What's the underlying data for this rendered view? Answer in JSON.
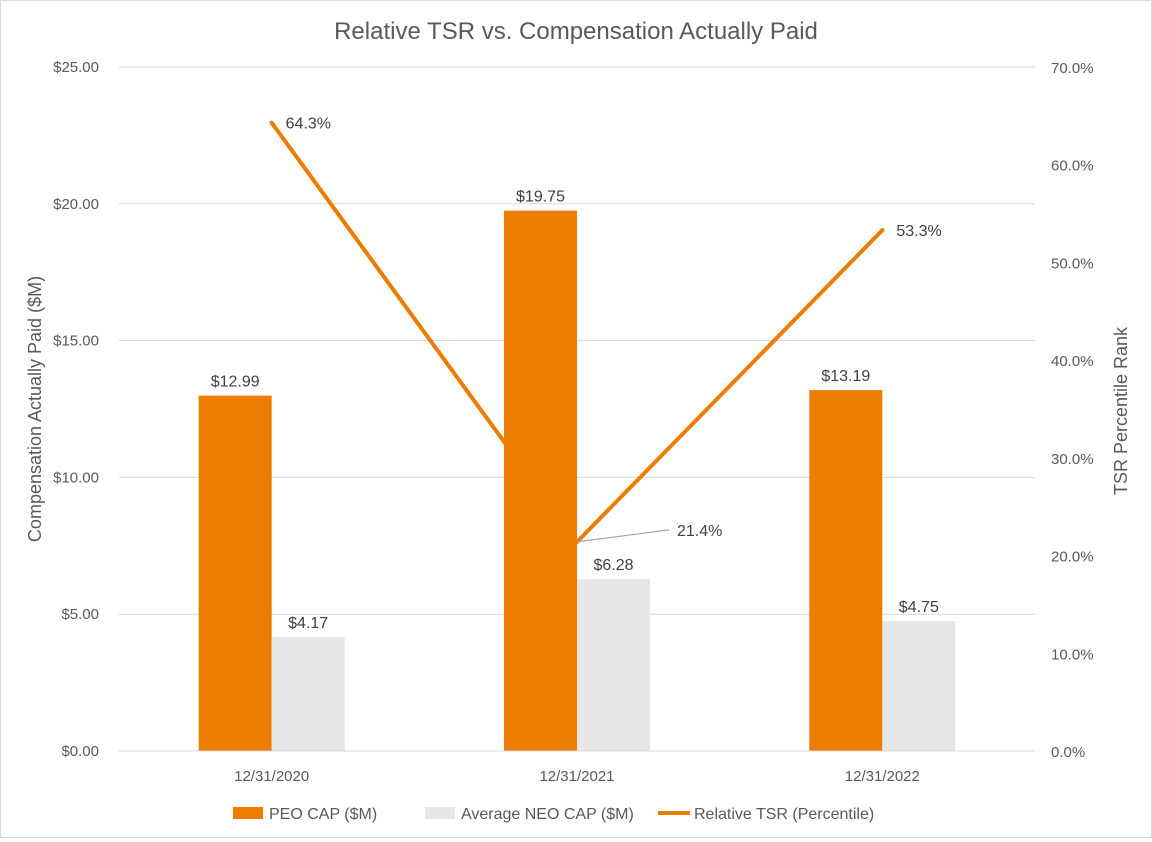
{
  "chart_data": {
    "type": "bar",
    "title": "Relative TSR vs. Compensation Actually Paid",
    "categories": [
      "12/31/2020",
      "12/31/2021",
      "12/31/2022"
    ],
    "ylabel": "Compensation Actually Paid ($M)",
    "y2label": "TSR Percentile Rank",
    "ylim": [
      0,
      25
    ],
    "y2lim": [
      0,
      70
    ],
    "yticks": [
      "$0.00",
      "$5.00",
      "$10.00",
      "$15.00",
      "$20.00",
      "$25.00"
    ],
    "y2ticks": [
      "0.0%",
      "10.0%",
      "20.0%",
      "30.0%",
      "40.0%",
      "50.0%",
      "60.0%",
      "70.0%"
    ],
    "grid": true,
    "legend_position": "bottom",
    "series": [
      {
        "name": "PEO CAP ($M)",
        "kind": "bar",
        "axis": "left",
        "color": "#ED7D00",
        "values": [
          12.99,
          19.75,
          13.19
        ],
        "labels": [
          "$12.99",
          "$19.75",
          "$13.19"
        ]
      },
      {
        "name": "Average NEO CAP ($M)",
        "kind": "bar",
        "axis": "left",
        "color": "#E7E6E6",
        "values": [
          4.17,
          6.28,
          4.75
        ],
        "labels": [
          "$4.17",
          "$6.28",
          "$4.75"
        ]
      },
      {
        "name": "Relative TSR (Percentile)",
        "kind": "line",
        "axis": "right",
        "color": "#ED7D00",
        "values": [
          64.3,
          21.4,
          53.3
        ],
        "labels": [
          "64.3%",
          "21.4%",
          "53.3%"
        ]
      }
    ]
  }
}
